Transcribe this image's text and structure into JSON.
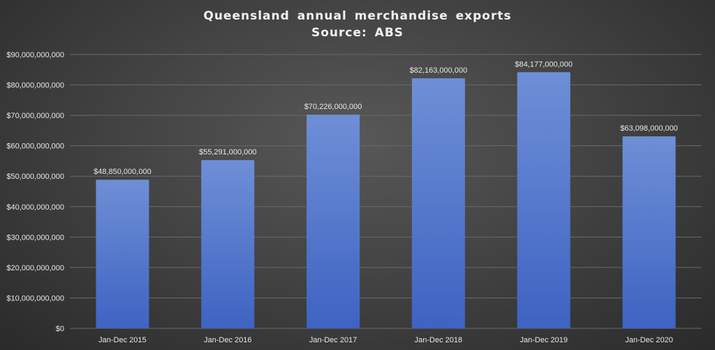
{
  "chart_data": {
    "type": "bar",
    "title": "Queensland annual merchandise exports",
    "subtitle": "Source: ABS",
    "xlabel": "",
    "ylabel": "",
    "categories": [
      "Jan-Dec 2015",
      "Jan-Dec 2016",
      "Jan-Dec 2017",
      "Jan-Dec 2018",
      "Jan-Dec 2019",
      "Jan-Dec 2020"
    ],
    "values": [
      48850000000,
      55291000000,
      70226000000,
      82163000000,
      84177000000,
      63098000000
    ],
    "data_labels": [
      "$48,850,000,000",
      "$55,291,000,000",
      "$70,226,000,000",
      "$82,163,000,000",
      "$84,177,000,000",
      "$63,098,000,000"
    ],
    "ylim": [
      0,
      90000000000
    ],
    "yticks": [
      0,
      10000000000,
      20000000000,
      30000000000,
      40000000000,
      50000000000,
      60000000000,
      70000000000,
      80000000000,
      90000000000
    ],
    "ytick_labels": [
      "$0",
      "$10,000,000,000",
      "$20,000,000,000",
      "$30,000,000,000",
      "$40,000,000,000",
      "$50,000,000,000",
      "$60,000,000,000",
      "$70,000,000,000",
      "$80,000,000,000",
      "$90,000,000,000"
    ],
    "grid": true,
    "legend": "none",
    "colors": {
      "bar_top": "#6e8fd6",
      "bar_bottom": "#3e63c2",
      "grid": "#6a6a6a",
      "text": "#e8e8e8"
    }
  }
}
